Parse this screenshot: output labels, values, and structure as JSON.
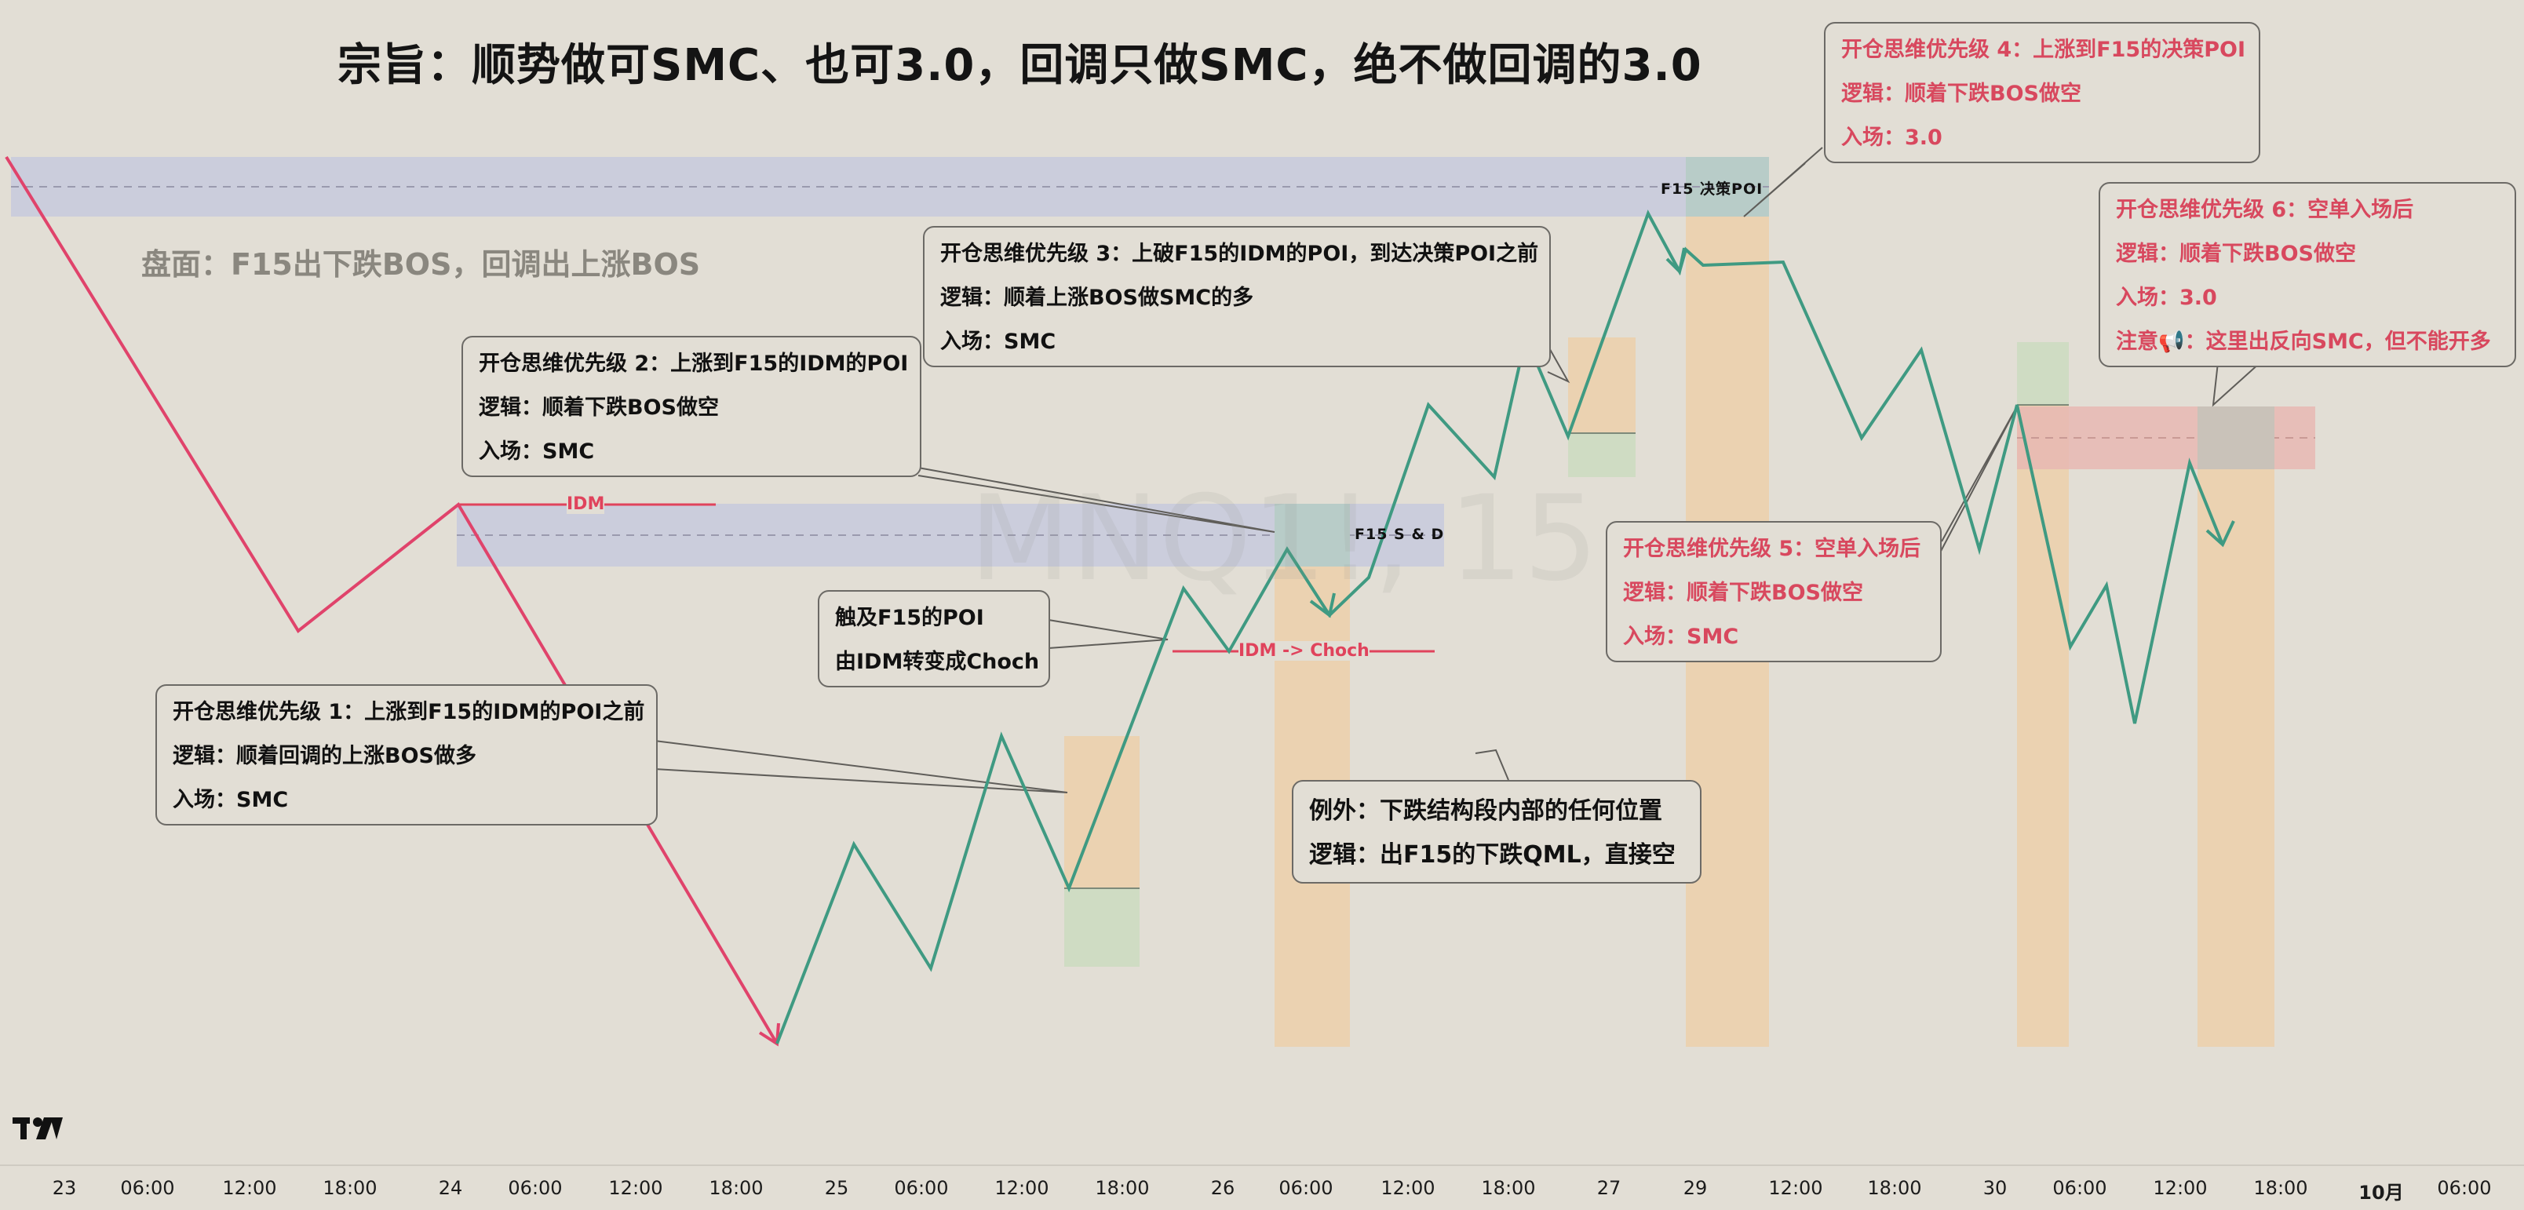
{
  "headline": "宗旨：顺势做可SMC、也可3.0，回调只做SMC，绝不做回调的3.0",
  "board_note": "盘面：F15出下跌BOS，回调出上涨BOS",
  "watermark": "MNQ1!, 15",
  "zones": {
    "f15_decision_poi": "F15  决策POI",
    "f15_sd": "F15  S & D"
  },
  "levels": {
    "idm": "IDM",
    "idm_choch": "IDM -> Choch"
  },
  "callouts": {
    "p1": {
      "title": "开仓思维优先级 1：上涨到F15的IDM的POI之前",
      "logic": "逻辑：顺着回调的上涨BOS做多",
      "entry": "入场：SMC"
    },
    "p2": {
      "title": "开仓思维优先级 2：上涨到F15的IDM的POI",
      "logic": "逻辑：顺着下跌BOS做空",
      "entry": "入场：SMC"
    },
    "p3": {
      "title": "开仓思维优先级 3：上破F15的IDM的POI，到达决策POI之前",
      "logic": "逻辑：顺着上涨BOS做SMC的多",
      "entry": "入场：SMC"
    },
    "p4": {
      "title": "开仓思维优先级 4：上涨到F15的决策POI",
      "logic": "逻辑：顺着下跌BOS做空",
      "entry": "入场：3.0"
    },
    "p5": {
      "title": "开仓思维优先级 5：空单入场后",
      "logic": "逻辑：顺着下跌BOS做空",
      "entry": "入场：SMC"
    },
    "p6": {
      "title": "开仓思维优先级 6：空单入场后",
      "logic": "逻辑：顺着下跌BOS做空",
      "entry": "入场：3.0",
      "note": "注意📢：这里出反向SMC，但不能开多"
    },
    "touch": {
      "line1": "触及F15的POI",
      "line2": "由IDM转变成Choch"
    },
    "exception": {
      "line1": "例外：下跌结构段内部的任何位置",
      "line2": "逻辑：出F15的下跌QML，直接空"
    }
  },
  "colors": {
    "background": "#e2ded5",
    "down_leg": "#e0436b",
    "up_leg": "#3f9a82",
    "blue_zone": "#c9cbdc",
    "orange_zone": "#ebd2b1",
    "green_zone": "#cfdcc3",
    "red_zone": "#e8b8b3",
    "level_red": "#e0435c"
  },
  "x_axis": {
    "ticks": [
      "23",
      "06:00",
      "12:00",
      "18:00",
      "24",
      "06:00",
      "12:00",
      "18:00",
      "25",
      "06:00",
      "12:00",
      "18:00",
      "26",
      "06:00",
      "12:00",
      "18:00",
      "27",
      "29",
      "12:00",
      "18:00",
      "30",
      "06:00",
      "12:00",
      "18:00",
      "10月",
      "06:00"
    ],
    "bold_ticks": [
      "10月"
    ]
  },
  "logo_icon": "tradingview-logo-icon"
}
